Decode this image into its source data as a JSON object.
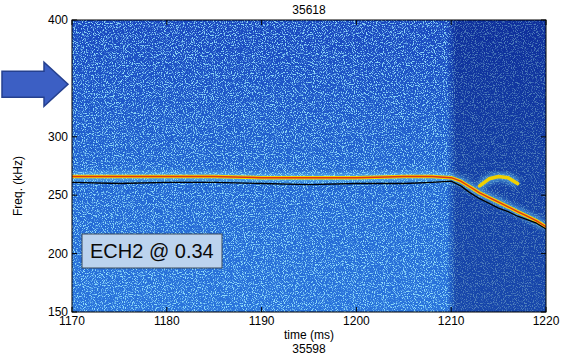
{
  "chart_data": {
    "type": "line",
    "title": "35618",
    "x_label": "time (ms)",
    "y_label": "Freq. (kHz)",
    "annotations": [
      "ECH2 @ 0.34",
      "35598"
    ],
    "x": [
      1170,
      1175,
      1180,
      1185,
      1190,
      1195,
      1200,
      1205,
      1208,
      1210,
      1211,
      1212,
      1213,
      1214,
      1215,
      1216,
      1217,
      1218,
      1219,
      1220
    ],
    "series": [
      {
        "color": "#f5d400",
        "line_style": "solid",
        "values": [
          266,
          266,
          266,
          266,
          265,
          265,
          265,
          266,
          266,
          265,
          262,
          257,
          252,
          248,
          244,
          240,
          236,
          232,
          228,
          223
        ]
      },
      {
        "color": "#000000",
        "line_style": "solid",
        "values": [
          261,
          260,
          261,
          261,
          260,
          259,
          260,
          260,
          261,
          262,
          258,
          252,
          247,
          243,
          239,
          236,
          232,
          229,
          226,
          221
        ]
      },
      {
        "color": "#f0d000",
        "line_style": "solid",
        "values": [
          null,
          null,
          null,
          null,
          null,
          null,
          null,
          null,
          null,
          null,
          null,
          null,
          258,
          264,
          266,
          265,
          260,
          null,
          null,
          null
        ]
      }
    ],
    "xlim": [
      1170,
      1220
    ],
    "xticks": [
      1170,
      1180,
      1190,
      1200,
      1210,
      1220
    ],
    "ylim": [
      150,
      400
    ],
    "yticks": [
      150,
      200,
      250,
      300,
      400
    ],
    "grid": false
  }
}
